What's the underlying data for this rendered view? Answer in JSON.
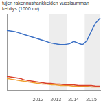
{
  "chart_data": {
    "type": "line",
    "title": "tujen rakennushankkeiden vuosisumman kehitys (1000 m³)",
    "categories": [
      null,
      null,
      null,
      null,
      null,
      null,
      null,
      "2012",
      null,
      null,
      null,
      "2013",
      null,
      null,
      null,
      "2014",
      null,
      null,
      null,
      "2015",
      null,
      null
    ],
    "series": [
      {
        "color": "#3a6fc4",
        "values": [
          86,
          85,
          84,
          82,
          80,
          78,
          76,
          74,
          72,
          70,
          68,
          67,
          66,
          66,
          67,
          70,
          68,
          66,
          72,
          85,
          97,
          104
        ]
      },
      {
        "color": "#d9412b",
        "values": [
          20,
          19,
          18,
          17,
          15,
          14,
          13,
          12,
          11,
          10,
          10,
          9,
          9,
          8,
          8,
          8,
          7,
          7,
          7,
          7,
          6,
          6
        ]
      },
      {
        "color": "#f0a030",
        "values": [
          17,
          16,
          15,
          14,
          13,
          12,
          11,
          10,
          9,
          9,
          8,
          8,
          7,
          7,
          7,
          6,
          6,
          6,
          6,
          5,
          5,
          5
        ]
      }
    ],
    "ylim": [
      0,
      110
    ],
    "grid": false,
    "tick_labels": "x"
  }
}
